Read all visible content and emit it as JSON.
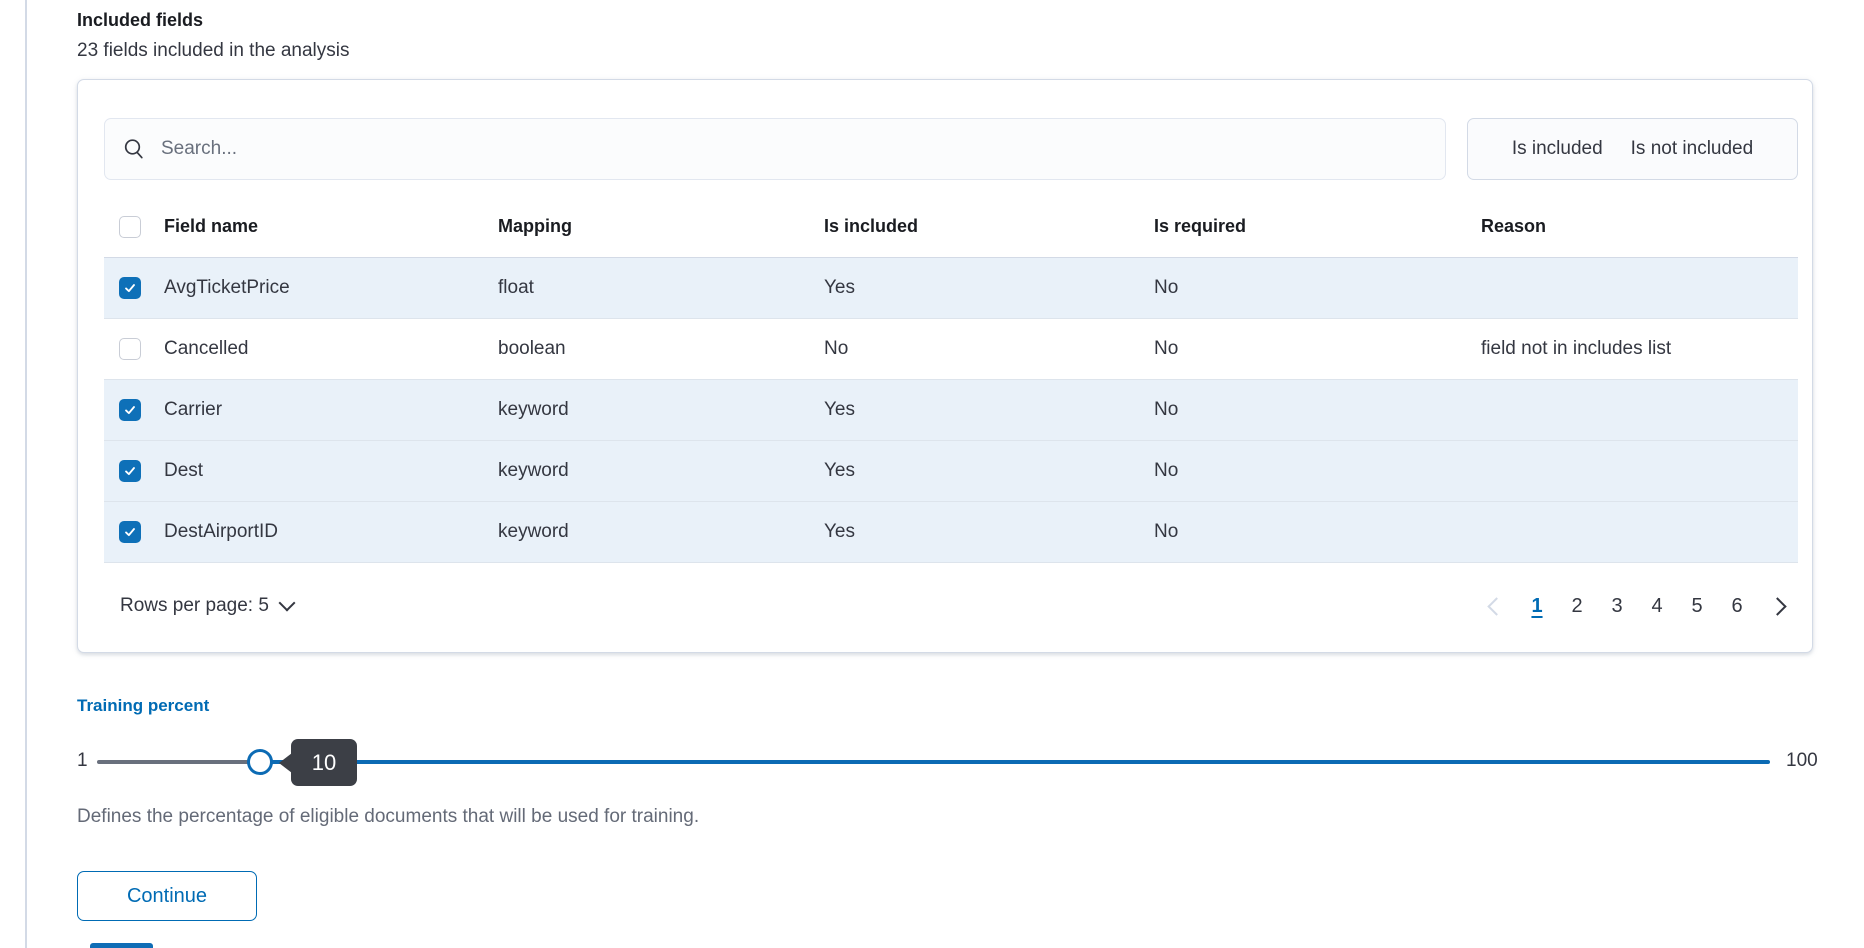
{
  "colors": {
    "primary": "#006BB4",
    "checkbox_blue": "#0E70B8",
    "selected_row": "#E9F1F9",
    "border": "#D3DAE6",
    "tooltip_bg": "#3C3F46",
    "track_left": "#69707D",
    "track_right": "#0C6BB4"
  },
  "section": {
    "heading": "Included fields",
    "subheading": "23 fields included in the analysis"
  },
  "toolbar": {
    "search_placeholder": "Search...",
    "filters": [
      {
        "label": "Is included"
      },
      {
        "label": "Is not included"
      }
    ]
  },
  "table": {
    "columns": [
      "Field name",
      "Mapping",
      "Is included",
      "Is required",
      "Reason"
    ],
    "rows": [
      {
        "checked": true,
        "field_name": "AvgTicketPrice",
        "mapping": "float",
        "is_included": "Yes",
        "is_required": "No",
        "reason": ""
      },
      {
        "checked": false,
        "field_name": "Cancelled",
        "mapping": "boolean",
        "is_included": "No",
        "is_required": "No",
        "reason": "field not in includes list"
      },
      {
        "checked": true,
        "field_name": "Carrier",
        "mapping": "keyword",
        "is_included": "Yes",
        "is_required": "No",
        "reason": ""
      },
      {
        "checked": true,
        "field_name": "Dest",
        "mapping": "keyword",
        "is_included": "Yes",
        "is_required": "No",
        "reason": ""
      },
      {
        "checked": true,
        "field_name": "DestAirportID",
        "mapping": "keyword",
        "is_included": "Yes",
        "is_required": "No",
        "reason": ""
      }
    ],
    "footer": {
      "rows_per_page": "Rows per page: 5",
      "pages": [
        "1",
        "2",
        "3",
        "4",
        "5",
        "6"
      ],
      "active_page": "1"
    }
  },
  "training_percent": {
    "label": "Training percent",
    "min": "1",
    "max": "100",
    "value": "10",
    "description": "Defines the percentage of eligible documents that will be used for training."
  },
  "actions": {
    "continue": "Continue"
  }
}
